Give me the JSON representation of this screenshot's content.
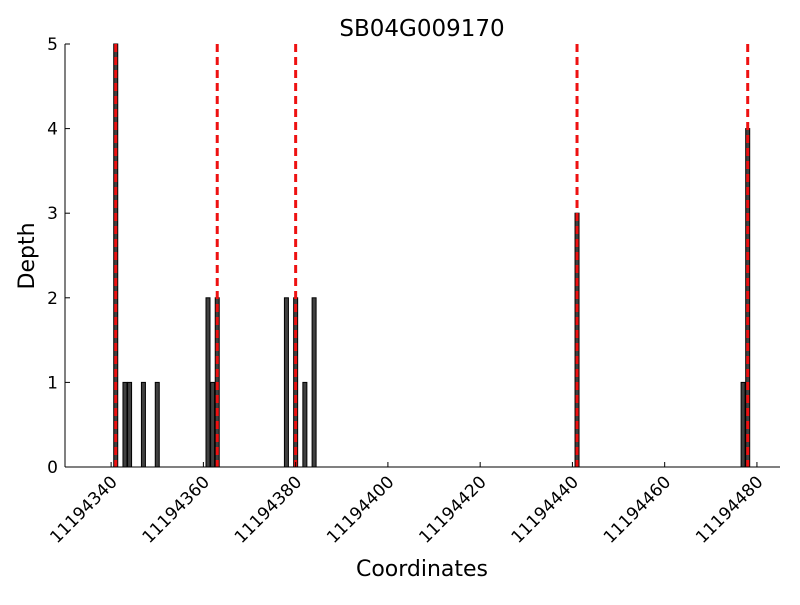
{
  "chart_data": {
    "type": "bar",
    "title": "SB04G009170",
    "xlabel": "Coordinates",
    "ylabel": "Depth",
    "xlim": [
      11194330,
      11194485
    ],
    "ylim": [
      0,
      5
    ],
    "x_ticks": [
      11194340,
      11194360,
      11194380,
      11194400,
      11194420,
      11194440,
      11194460,
      11194480
    ],
    "y_ticks": [
      0,
      1,
      2,
      3,
      4,
      5
    ],
    "grid": false,
    "legend": "none",
    "series": [
      {
        "x": [
          11194341,
          11194343,
          11194344,
          11194347,
          11194350,
          11194361,
          11194362,
          11194363,
          11194378,
          11194380,
          11194382,
          11194384
        ],
        "values": [
          5,
          1,
          1,
          1,
          1,
          2,
          1,
          2,
          2,
          2,
          1,
          2
        ]
      },
      {
        "x": [
          11194441,
          11194477,
          11194478
        ],
        "values": [
          3,
          1,
          4
        ]
      }
    ],
    "reference_lines_x": [
      11194341,
      11194363,
      11194380,
      11194441,
      11194478
    ],
    "colors": {
      "bar_fill": "#404040",
      "bar_edge": "#000000",
      "reference_line": "#ee1111",
      "axis": "#000000"
    }
  }
}
